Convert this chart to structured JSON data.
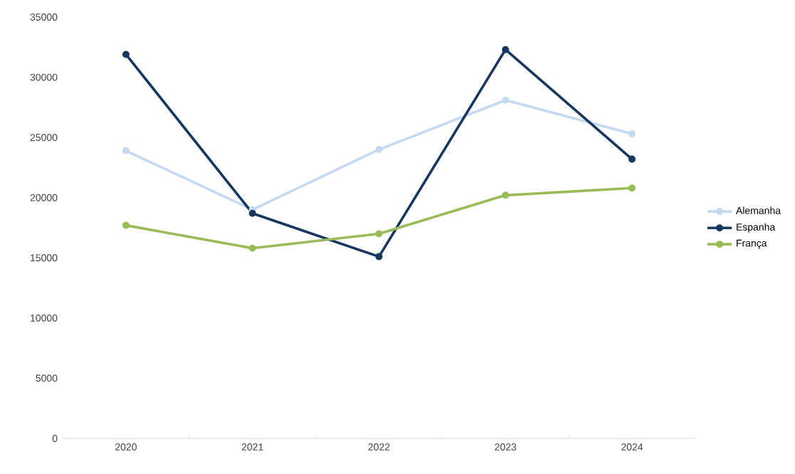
{
  "chart_data": {
    "type": "line",
    "categories": [
      "2020",
      "2021",
      "2022",
      "2023",
      "2024"
    ],
    "series": [
      {
        "name": "Alemanha",
        "color": "#c5d9f1",
        "values": [
          23900,
          19000,
          24000,
          28100,
          25300
        ]
      },
      {
        "name": "Espanha",
        "color": "#17375e",
        "values": [
          31900,
          18700,
          15100,
          32300,
          23200
        ]
      },
      {
        "name": "França",
        "color": "#9bbb59",
        "values": [
          17700,
          15800,
          17000,
          20200,
          20800
        ]
      }
    ],
    "ylim": [
      0,
      35000
    ],
    "yticks": [
      0,
      5000,
      10000,
      15000,
      20000,
      25000,
      30000,
      35000
    ],
    "legend": "right",
    "marker": "circle",
    "line_style": "solid"
  }
}
